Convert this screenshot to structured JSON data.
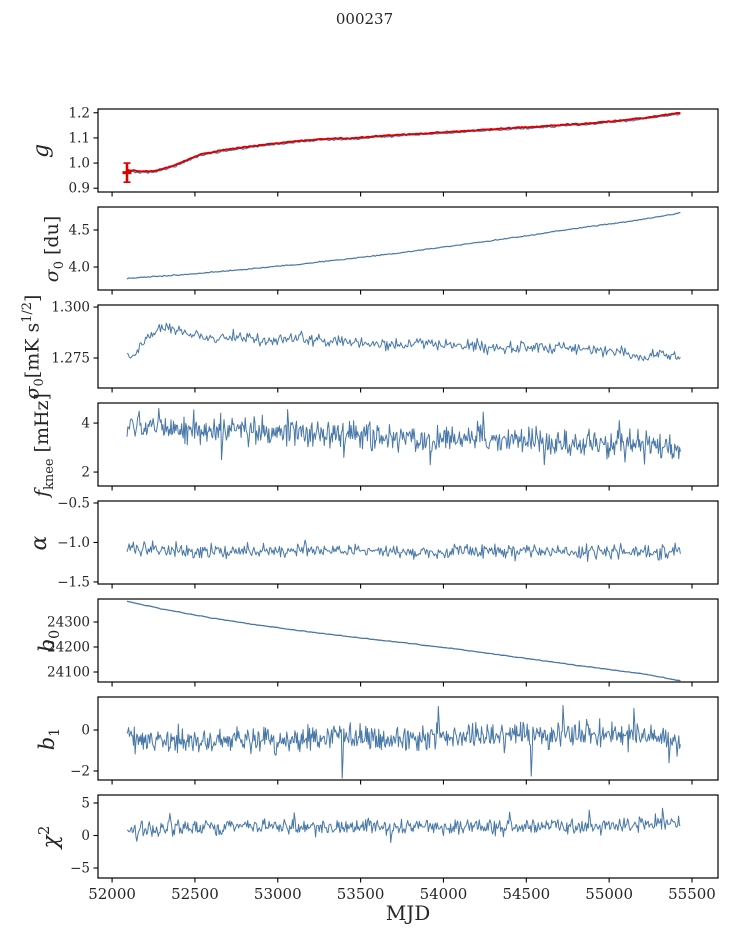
{
  "chart_data": {
    "type": "line",
    "title": "000237",
    "xlabel": "MJD",
    "xlim": [
      51915,
      55657
    ],
    "xticks": [
      {
        "v": 52000,
        "l": "52000"
      },
      {
        "v": 52500,
        "l": "52500"
      },
      {
        "v": 53000,
        "l": "53000"
      },
      {
        "v": 53500,
        "l": "53500"
      },
      {
        "v": 54000,
        "l": "54000"
      },
      {
        "v": 54500,
        "l": "54500"
      },
      {
        "v": 55000,
        "l": "55000"
      },
      {
        "v": 55500,
        "l": "55500"
      }
    ],
    "x_data_range": [
      52090,
      55430
    ],
    "grid": false,
    "legend": "none",
    "colors": {
      "data_line": "#4878a8",
      "fit_line": "#dc0000"
    },
    "panels": [
      {
        "key": "g",
        "ylabel_segments": [
          [
            "g",
            "i"
          ]
        ],
        "ylim": [
          0.885,
          1.215
        ],
        "yticks": [
          {
            "v": 0.9,
            "l": "0.9"
          },
          {
            "v": 1.0,
            "l": "1.0"
          },
          {
            "v": 1.1,
            "l": "1.1"
          },
          {
            "v": 1.2,
            "l": "1.2"
          }
        ],
        "errorbar": {
          "x": 52090,
          "y": 0.962,
          "yerr": 0.038,
          "color": "#dc0000"
        },
        "series": [
          {
            "name": "gain-measured",
            "color": "#4878a8",
            "width": 1.1,
            "n": 340,
            "noise": 0.0028,
            "trend": [
              [
                52090,
                0.97
              ],
              [
                52160,
                0.962
              ],
              [
                52260,
                0.964
              ],
              [
                52400,
                0.992
              ],
              [
                52530,
                1.03
              ],
              [
                52700,
                1.05
              ],
              [
                52900,
                1.068
              ],
              [
                53100,
                1.082
              ],
              [
                53250,
                1.091
              ],
              [
                53400,
                1.094
              ],
              [
                53500,
                1.097
              ],
              [
                53650,
                1.105
              ],
              [
                53800,
                1.11
              ],
              [
                53950,
                1.116
              ],
              [
                54100,
                1.122
              ],
              [
                54250,
                1.128
              ],
              [
                54400,
                1.134
              ],
              [
                54550,
                1.14
              ],
              [
                54700,
                1.147
              ],
              [
                54850,
                1.152
              ],
              [
                55000,
                1.161
              ],
              [
                55150,
                1.171
              ],
              [
                55250,
                1.178
              ],
              [
                55350,
                1.189
              ],
              [
                55430,
                1.195
              ]
            ]
          },
          {
            "name": "gain-fit",
            "color": "#dc0000",
            "width": 2.0,
            "n": 340,
            "noise": 0.0018,
            "use_trend_of": 0,
            "offset": 0.0045
          }
        ]
      },
      {
        "key": "sigma0-du",
        "ylabel_segments": [
          [
            "σ",
            "i"
          ],
          [
            "0",
            "sub"
          ],
          [
            " [du]",
            ""
          ]
        ],
        "ylim": [
          3.69,
          4.81
        ],
        "yticks": [
          {
            "v": 4.0,
            "l": "4.0"
          },
          {
            "v": 4.5,
            "l": "4.5"
          }
        ],
        "series": [
          {
            "name": "sigma0-du",
            "color": "#4878a8",
            "width": 1.2,
            "n": 360,
            "noise": 0.006,
            "trend": [
              [
                52090,
                3.845
              ],
              [
                52200,
                3.865
              ],
              [
                52350,
                3.885
              ],
              [
                52500,
                3.91
              ],
              [
                52700,
                3.95
              ],
              [
                52900,
                3.99
              ],
              [
                53100,
                4.03
              ],
              [
                53300,
                4.08
              ],
              [
                53500,
                4.13
              ],
              [
                53700,
                4.18
              ],
              [
                53900,
                4.24
              ],
              [
                54100,
                4.3
              ],
              [
                54300,
                4.36
              ],
              [
                54500,
                4.42
              ],
              [
                54700,
                4.49
              ],
              [
                54900,
                4.55
              ],
              [
                55100,
                4.61
              ],
              [
                55250,
                4.66
              ],
              [
                55350,
                4.7
              ],
              [
                55430,
                4.73
              ]
            ]
          }
        ]
      },
      {
        "key": "sigma0-mK",
        "ylabel_segments": [
          [
            "σ",
            "i"
          ],
          [
            "0",
            "sub"
          ],
          [
            "[mK s",
            ""
          ],
          [
            "1/2",
            "sup"
          ],
          [
            "]",
            ""
          ]
        ],
        "ylim": [
          1.2603,
          1.301
        ],
        "yticks": [
          {
            "v": 1.275,
            "l": "1.275"
          },
          {
            "v": 1.3,
            "l": "1.300"
          }
        ],
        "series": [
          {
            "name": "sigma0-mK",
            "color": "#4878a8",
            "width": 1.0,
            "n": 480,
            "noise": 0.0026,
            "trend": [
              [
                52090,
                1.2748
              ],
              [
                52140,
                1.276
              ],
              [
                52200,
                1.284
              ],
              [
                52280,
                1.2888
              ],
              [
                52360,
                1.2898
              ],
              [
                52450,
                1.2868
              ],
              [
                52560,
                1.2848
              ],
              [
                52700,
                1.2852
              ],
              [
                52850,
                1.2842
              ],
              [
                53000,
                1.2832
              ],
              [
                53100,
                1.2856
              ],
              [
                53250,
                1.2838
              ],
              [
                53400,
                1.283
              ],
              [
                53550,
                1.2822
              ],
              [
                53700,
                1.2806
              ],
              [
                53850,
                1.2822
              ],
              [
                54000,
                1.2815
              ],
              [
                54150,
                1.2808
              ],
              [
                54300,
                1.2802
              ],
              [
                54500,
                1.2802
              ],
              [
                54700,
                1.2798
              ],
              [
                54900,
                1.2792
              ],
              [
                55050,
                1.2788
              ],
              [
                55200,
                1.2752
              ],
              [
                55300,
                1.2772
              ],
              [
                55430,
                1.2752
              ]
            ]
          }
        ]
      },
      {
        "key": "fknee",
        "ylabel_segments": [
          [
            "f",
            "i"
          ],
          [
            "knee",
            "sub"
          ],
          [
            " [mHz]",
            ""
          ]
        ],
        "ylim": [
          1.43,
          4.82
        ],
        "yticks": [
          {
            "v": 2,
            "l": "2"
          },
          {
            "v": 4,
            "l": "4"
          }
        ],
        "series": [
          {
            "name": "fknee",
            "color": "#4878a8",
            "width": 1.0,
            "n": 680,
            "noise": 0.5,
            "trend": [
              [
                52090,
                3.82
              ],
              [
                52300,
                3.78
              ],
              [
                52600,
                3.7
              ],
              [
                52900,
                3.62
              ],
              [
                53200,
                3.55
              ],
              [
                53500,
                3.48
              ],
              [
                53800,
                3.42
              ],
              [
                54100,
                3.38
              ],
              [
                54400,
                3.32
              ],
              [
                54700,
                3.22
              ],
              [
                55000,
                3.12
              ],
              [
                55200,
                3.05
              ],
              [
                55430,
                2.92
              ]
            ],
            "spikes": [
              [
                52280,
                4.6
              ],
              [
                52660,
                2.5
              ],
              [
                53060,
                4.55
              ],
              [
                53400,
                2.6
              ],
              [
                53920,
                2.3
              ],
              [
                54240,
                4.45
              ],
              [
                54610,
                2.3
              ],
              [
                55060,
                4.1
              ],
              [
                55380,
                2.55
              ]
            ]
          }
        ]
      },
      {
        "key": "alpha",
        "ylabel_segments": [
          [
            "α",
            "i"
          ]
        ],
        "ylim": [
          -1.526,
          -0.475
        ],
        "yticks": [
          {
            "v": -0.5,
            "l": "−0.5"
          },
          {
            "v": -1.0,
            "l": "−1.0"
          },
          {
            "v": -1.5,
            "l": "−1.5"
          }
        ],
        "series": [
          {
            "name": "alpha",
            "color": "#4878a8",
            "width": 1.0,
            "n": 520,
            "noise": 0.085,
            "trend": [
              [
                52090,
                -1.07
              ],
              [
                52500,
                -1.1
              ],
              [
                53000,
                -1.11
              ],
              [
                53500,
                -1.11
              ],
              [
                54000,
                -1.11
              ],
              [
                54500,
                -1.11
              ],
              [
                55000,
                -1.11
              ],
              [
                55430,
                -1.12
              ]
            ]
          }
        ]
      },
      {
        "key": "b0",
        "ylabel_segments": [
          [
            "b",
            "i"
          ],
          [
            "0",
            "sub"
          ]
        ],
        "ylim": [
          24060,
          24392
        ],
        "yticks": [
          {
            "v": 24100,
            "l": "24100"
          },
          {
            "v": 24200,
            "l": "24200"
          },
          {
            "v": 24300,
            "l": "24300"
          }
        ],
        "series": [
          {
            "name": "b0",
            "color": "#4878a8",
            "width": 1.3,
            "n": 260,
            "noise": 1.2,
            "trend": [
              [
                52090,
                24383
              ],
              [
                52300,
                24352
              ],
              [
                52600,
                24316
              ],
              [
                52900,
                24286
              ],
              [
                53200,
                24260
              ],
              [
                53500,
                24236
              ],
              [
                53800,
                24214
              ],
              [
                54100,
                24190
              ],
              [
                54400,
                24163
              ],
              [
                54700,
                24136
              ],
              [
                55000,
                24110
              ],
              [
                55200,
                24093
              ],
              [
                55430,
                24065
              ]
            ]
          }
        ]
      },
      {
        "key": "b1",
        "ylabel_segments": [
          [
            "b",
            "i"
          ],
          [
            "1",
            "sub"
          ]
        ],
        "ylim": [
          -2.44,
          1.61
        ],
        "yticks": [
          {
            "v": 0,
            "l": "0"
          },
          {
            "v": -2,
            "l": "−2"
          }
        ],
        "series": [
          {
            "name": "b1",
            "color": "#4878a8",
            "width": 1.0,
            "n": 680,
            "noise": 0.55,
            "trend": [
              [
                52090,
                -0.42
              ],
              [
                52500,
                -0.5
              ],
              [
                53000,
                -0.45
              ],
              [
                53500,
                -0.42
              ],
              [
                53800,
                -0.35
              ],
              [
                54200,
                -0.28
              ],
              [
                54600,
                -0.22
              ],
              [
                54900,
                -0.28
              ],
              [
                55100,
                -0.3
              ],
              [
                55300,
                -0.35
              ],
              [
                55430,
                -0.6
              ]
            ],
            "spikes": [
              [
                53390,
                -2.35
              ],
              [
                53970,
                1.15
              ],
              [
                54530,
                -2.25
              ],
              [
                54720,
                1.2
              ],
              [
                55150,
                1.05
              ],
              [
                55360,
                -1.6
              ]
            ]
          }
        ]
      },
      {
        "key": "chi2",
        "ylabel_segments": [
          [
            "χ",
            "i"
          ],
          [
            "2",
            "sup"
          ]
        ],
        "ylim": [
          -6.54,
          6.23
        ],
        "yticks": [
          {
            "v": 5,
            "l": "5"
          },
          {
            "v": 0,
            "l": "0"
          },
          {
            "v": -5,
            "l": "−5"
          }
        ],
        "series": [
          {
            "name": "chi2",
            "color": "#4878a8",
            "width": 1.0,
            "n": 620,
            "noise": 1.0,
            "trend": [
              [
                52090,
                0.7
              ],
              [
                52300,
                1.2
              ],
              [
                52600,
                1.35
              ],
              [
                53000,
                1.3
              ],
              [
                53400,
                1.25
              ],
              [
                53800,
                1.2
              ],
              [
                54200,
                1.3
              ],
              [
                54600,
                1.4
              ],
              [
                55000,
                1.5
              ],
              [
                55250,
                1.7
              ],
              [
                55430,
                2.3
              ]
            ],
            "spikes": [
              [
                52150,
                -0.9
              ],
              [
                52350,
                3.4
              ],
              [
                53100,
                3.5
              ],
              [
                53680,
                -1.1
              ],
              [
                54400,
                3.6
              ],
              [
                54880,
                3.9
              ],
              [
                55320,
                4.2
              ]
            ]
          }
        ]
      }
    ]
  }
}
